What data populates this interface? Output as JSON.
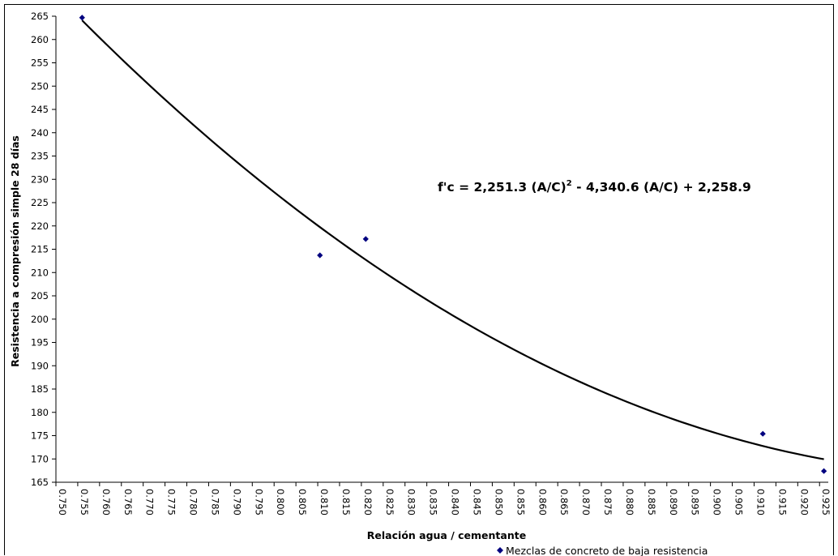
{
  "chart_data": {
    "type": "scatter",
    "xlabel": "Relación agua / cementante",
    "ylabel": "Resistencia a compresión simple 28 días",
    "xlim": [
      0.75,
      0.927
    ],
    "ylim": [
      165,
      265
    ],
    "x_ticks": [
      "0.750",
      "0.755",
      "0.760",
      "0.765",
      "0.770",
      "0.775",
      "0.780",
      "0.785",
      "0.790",
      "0.795",
      "0.800",
      "0.805",
      "0.810",
      "0.815",
      "0.820",
      "0.825",
      "0.830",
      "0.835",
      "0.840",
      "0.845",
      "0.850",
      "0.855",
      "0.860",
      "0.865",
      "0.870",
      "0.875",
      "0.880",
      "0.885",
      "0.890",
      "0.895",
      "0.900",
      "0.905",
      "0.910",
      "0.915",
      "0.920",
      "0.925"
    ],
    "y_ticks": [
      "165",
      "170",
      "175",
      "180",
      "185",
      "190",
      "195",
      "200",
      "205",
      "210",
      "215",
      "220",
      "225",
      "230",
      "235",
      "240",
      "245",
      "250",
      "255",
      "260",
      "265"
    ],
    "series": [
      {
        "name": "Mezclas de concreto de baja resistencia",
        "color": "#00007f",
        "marker": "diamond",
        "points": [
          {
            "x": 0.756,
            "y": 264.7
          },
          {
            "x": 0.8105,
            "y": 213.7
          },
          {
            "x": 0.821,
            "y": 217.2
          },
          {
            "x": 0.912,
            "y": 175.4
          },
          {
            "x": 0.926,
            "y": 167.4
          }
        ]
      }
    ],
    "trendline": {
      "type": "polynomial",
      "order": 2,
      "coefficients": [
        2251.3,
        -4340.6,
        2258.9
      ],
      "x_range": [
        0.756,
        0.926
      ],
      "color": "#000000"
    },
    "annotation": {
      "equation_prefix": "f'c = 2,251.3 (A/C)",
      "equation_exponent": "2",
      "equation_suffix": " - 4,340.6 (A/C) + 2,258.9"
    },
    "legend_position": "bottom-right",
    "grid": false
  }
}
